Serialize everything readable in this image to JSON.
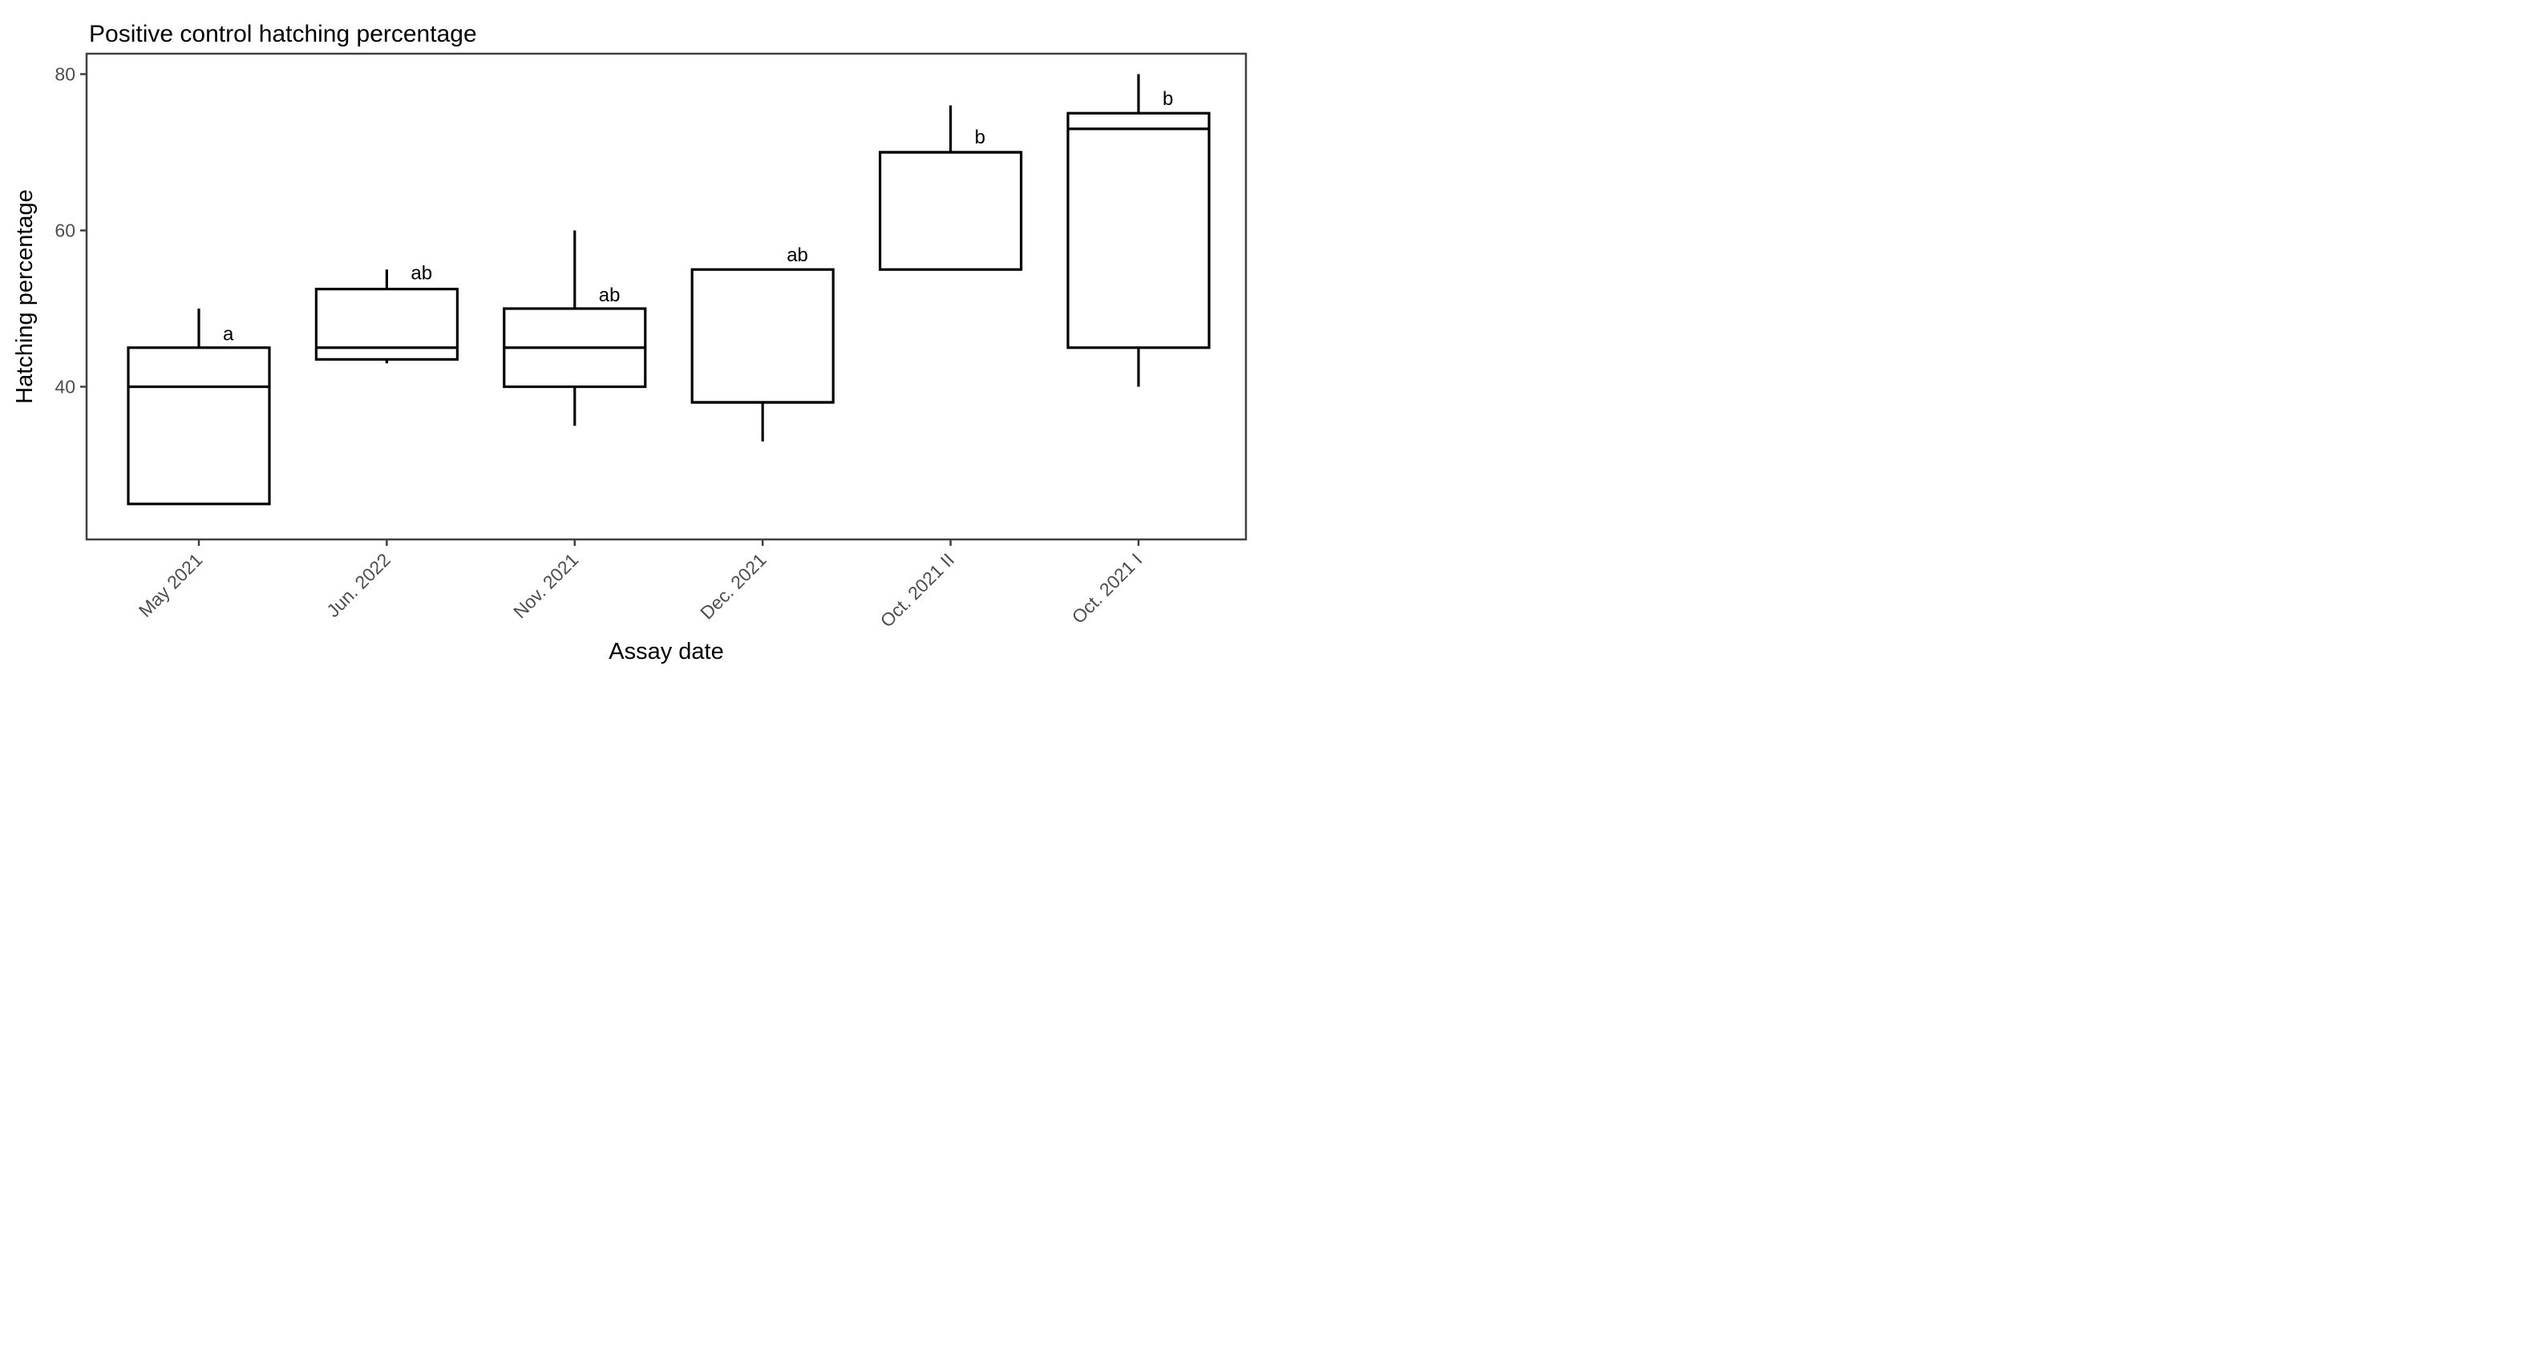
{
  "figure": {
    "title": "Positive control hatching percentage",
    "x_axis_title": "Assay date",
    "y_axis_title": "Hatching percentage"
  },
  "chart_data": {
    "type": "boxplot",
    "title": "Positive control hatching percentage",
    "xlabel": "Assay date",
    "ylabel": "Hatching percentage",
    "categories": [
      "May 2021",
      "Jun. 2022",
      "Nov. 2021",
      "Dec. 2021",
      "Oct. 2021 II",
      "Oct. 2021 I"
    ],
    "y_ticks": [
      40,
      60,
      80
    ],
    "ylim": [
      20.4,
      82.6
    ],
    "grid": false,
    "legend": false,
    "x_tick_angle": 45,
    "boxes": [
      {
        "category": "May 2021",
        "sig_letter": "a",
        "min": 25,
        "q1": 25,
        "median": 40,
        "q3": 45,
        "max": 50,
        "letter_y": 46.7
      },
      {
        "category": "Jun. 2022",
        "sig_letter": "ab",
        "min": 43,
        "q1": 43.5,
        "median": 45,
        "q3": 52.5,
        "max": 55,
        "letter_y": 54.5
      },
      {
        "category": "Nov. 2021",
        "sig_letter": "ab",
        "min": 35,
        "q1": 40,
        "median": 45,
        "q3": 50,
        "max": 60,
        "letter_y": 51.7
      },
      {
        "category": "Dec. 2021",
        "sig_letter": "ab",
        "min": 33,
        "q1": 38,
        "median": 38,
        "q3": 55,
        "max": 55,
        "letter_y": 56.8
      },
      {
        "category": "Oct. 2021 II",
        "sig_letter": "b",
        "min": 55,
        "q1": 55,
        "median": 70,
        "q3": 70,
        "max": 76,
        "letter_y": 71.9
      },
      {
        "category": "Oct. 2021 I",
        "sig_letter": "b",
        "min": 40,
        "q1": 45,
        "median": 73,
        "q3": 75,
        "max": 80,
        "letter_y": 76.8
      }
    ]
  },
  "colors": {
    "background": "#ffffff",
    "box_stroke": "#000000",
    "box_fill": "#ffffff",
    "panel_border": "#404040",
    "tick_mark": "#404040",
    "tick_text": "#4d4d4d",
    "title_text": "#000000",
    "axis_title_text": "#000000",
    "sig_letter_text": "#000000"
  }
}
